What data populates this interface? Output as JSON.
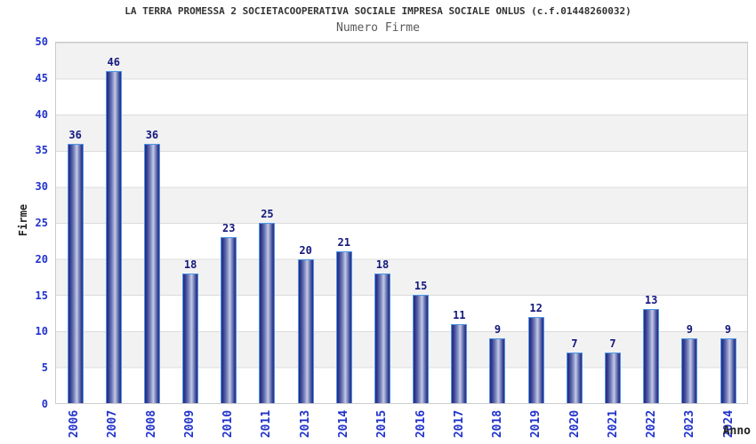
{
  "chart_data": {
    "type": "bar",
    "title": "LA TERRA PROMESSA 2 SOCIETACOOPERATIVA SOCIALE IMPRESA SOCIALE ONLUS (c.f.01448260032)",
    "subtitle": "Numero Firme",
    "xlabel": "Anno",
    "ylabel": "Firme",
    "categories": [
      "2006",
      "2007",
      "2008",
      "2009",
      "2010",
      "2011",
      "2013",
      "2014",
      "2015",
      "2016",
      "2017",
      "2018",
      "2019",
      "2020",
      "2021",
      "2022",
      "2023",
      "2024"
    ],
    "values": [
      36,
      46,
      36,
      18,
      23,
      25,
      20,
      21,
      18,
      15,
      11,
      9,
      12,
      7,
      7,
      13,
      9,
      9
    ],
    "ylim": [
      0,
      50
    ],
    "yticks": [
      0,
      5,
      10,
      15,
      20,
      25,
      30,
      35,
      40,
      45,
      50
    ],
    "grid": true,
    "legend": "none",
    "colors": {
      "bar_dark": "#242b7d",
      "bar_light": "#c4cbe7",
      "bar_border": "#4e96e6",
      "value_label": "#14187d",
      "axis_tick_blue": "#2233cc",
      "band_gray": "#f2f2f2",
      "band_white": "#ffffff",
      "gridline": "#dcdcdc",
      "plot_border": "#cccccc",
      "title_color": "#333333",
      "subtitle_color": "#5a5a5a"
    }
  }
}
